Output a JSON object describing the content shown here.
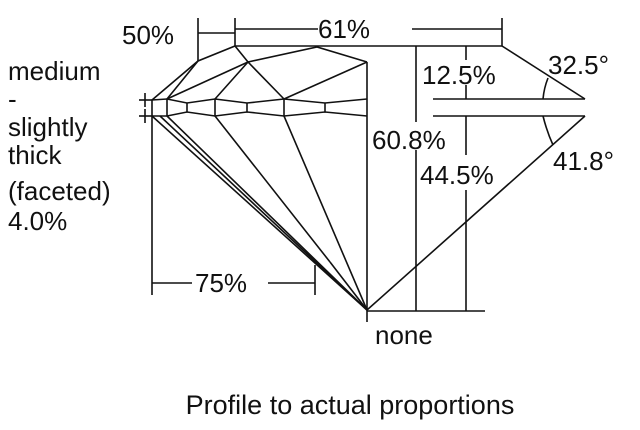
{
  "labels": {
    "table_half": "50%",
    "table": "61%",
    "crown_height": "12.5%",
    "crown_angle": "32.5°",
    "total_depth": "60.8%",
    "pavilion_angle": "41.8°",
    "pavilion_depth": "44.5%",
    "lower_half": "75%",
    "culet": "none",
    "girdle": [
      "medium",
      "-",
      "slightly",
      "thick",
      "(faceted)",
      "4.0%"
    ]
  },
  "caption": "Profile to actual proportions",
  "colors": {
    "line": "#111111",
    "background": "#ffffff"
  }
}
